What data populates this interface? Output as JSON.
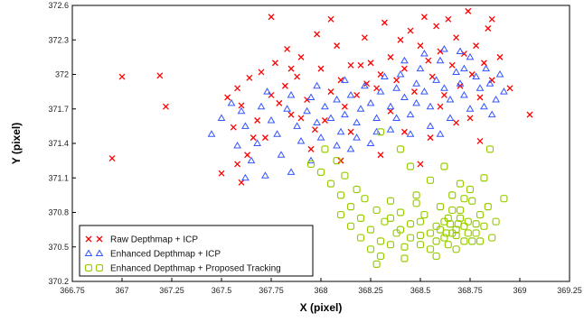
{
  "chart_data": {
    "type": "scatter",
    "title": "",
    "xlabel": "X (pixel)",
    "ylabel": "Y (pixel)",
    "xlim": [
      366.75,
      369.25
    ],
    "ylim": [
      370.2,
      372.6
    ],
    "xticks": [
      "366.75",
      "367",
      "367.25",
      "367.5",
      "367.75",
      "368",
      "368.25",
      "368.5",
      "368.75",
      "369",
      "369.25"
    ],
    "yticks": [
      "370.2",
      "370.5",
      "370.8",
      "371.1",
      "371.4",
      "371.7",
      "372",
      "372.3",
      "372.6"
    ],
    "grid": false,
    "legend_position": "bottom-left",
    "series": [
      {
        "name": "Raw Depthmap + ICP",
        "marker": "x",
        "color": "#ff0000",
        "points": [
          [
            367.0,
            371.98
          ],
          [
            367.19,
            371.99
          ],
          [
            367.22,
            371.72
          ],
          [
            366.95,
            371.27
          ],
          [
            367.5,
            371.14
          ],
          [
            367.6,
            371.06
          ],
          [
            367.58,
            371.22
          ],
          [
            367.63,
            371.3
          ],
          [
            367.56,
            371.54
          ],
          [
            367.53,
            371.8
          ],
          [
            367.58,
            371.88
          ],
          [
            367.64,
            371.97
          ],
          [
            367.6,
            371.73
          ],
          [
            367.68,
            371.6
          ],
          [
            367.72,
            371.45
          ],
          [
            367.75,
            371.82
          ],
          [
            367.7,
            372.02
          ],
          [
            367.77,
            372.1
          ],
          [
            367.82,
            371.9
          ],
          [
            367.79,
            371.75
          ],
          [
            367.85,
            371.65
          ],
          [
            367.88,
            371.98
          ],
          [
            367.9,
            372.15
          ],
          [
            367.83,
            372.22
          ],
          [
            367.93,
            371.78
          ],
          [
            367.97,
            371.52
          ],
          [
            367.95,
            371.35
          ],
          [
            368.02,
            371.6
          ],
          [
            368.05,
            371.85
          ],
          [
            368.0,
            372.05
          ],
          [
            368.08,
            372.25
          ],
          [
            368.1,
            371.95
          ],
          [
            368.12,
            371.72
          ],
          [
            368.15,
            371.5
          ],
          [
            368.18,
            371.82
          ],
          [
            368.2,
            372.08
          ],
          [
            368.22,
            372.32
          ],
          [
            368.25,
            372.1
          ],
          [
            368.28,
            371.88
          ],
          [
            368.3,
            372.0
          ],
          [
            368.32,
            372.45
          ],
          [
            368.35,
            372.15
          ],
          [
            368.38,
            371.95
          ],
          [
            368.4,
            372.3
          ],
          [
            368.42,
            372.05
          ],
          [
            368.45,
            372.38
          ],
          [
            368.47,
            371.85
          ],
          [
            368.5,
            372.25
          ],
          [
            368.52,
            372.5
          ],
          [
            368.54,
            372.12
          ],
          [
            368.56,
            371.98
          ],
          [
            368.58,
            372.42
          ],
          [
            368.6,
            372.2
          ],
          [
            368.62,
            371.82
          ],
          [
            368.64,
            372.48
          ],
          [
            368.66,
            372.08
          ],
          [
            368.68,
            372.32
          ],
          [
            368.7,
            371.9
          ],
          [
            368.72,
            372.18
          ],
          [
            368.74,
            372.55
          ],
          [
            368.76,
            372.0
          ],
          [
            368.78,
            372.25
          ],
          [
            368.8,
            371.8
          ],
          [
            368.82,
            372.1
          ],
          [
            368.84,
            372.4
          ],
          [
            368.86,
            371.95
          ],
          [
            368.9,
            372.15
          ],
          [
            368.95,
            371.88
          ],
          [
            369.05,
            371.65
          ],
          [
            368.86,
            372.48
          ],
          [
            368.8,
            371.42
          ],
          [
            368.75,
            371.62
          ],
          [
            368.55,
            371.45
          ],
          [
            368.42,
            371.5
          ],
          [
            368.5,
            371.22
          ],
          [
            368.35,
            371.68
          ],
          [
            368.3,
            371.3
          ],
          [
            368.23,
            371.92
          ],
          [
            367.98,
            372.35
          ],
          [
            367.85,
            372.05
          ],
          [
            367.75,
            372.5
          ],
          [
            367.9,
            371.62
          ],
          [
            368.05,
            372.48
          ],
          [
            368.15,
            372.08
          ],
          [
            368.6,
            371.72
          ],
          [
            368.68,
            371.58
          ],
          [
            368.1,
            371.25
          ],
          [
            367.66,
            371.45
          ]
        ]
      },
      {
        "name": "Enhanced Depthmap + ICP",
        "marker": "triangle",
        "color": "#3355ff",
        "points": [
          [
            367.45,
            371.48
          ],
          [
            367.5,
            371.62
          ],
          [
            367.55,
            371.75
          ],
          [
            367.6,
            371.68
          ],
          [
            367.62,
            371.55
          ],
          [
            367.58,
            371.38
          ],
          [
            367.65,
            371.25
          ],
          [
            367.68,
            371.4
          ],
          [
            367.7,
            371.72
          ],
          [
            367.73,
            371.85
          ],
          [
            367.75,
            371.6
          ],
          [
            367.78,
            371.48
          ],
          [
            367.8,
            371.3
          ],
          [
            367.83,
            371.7
          ],
          [
            367.85,
            371.82
          ],
          [
            367.88,
            371.55
          ],
          [
            367.9,
            371.42
          ],
          [
            367.93,
            371.68
          ],
          [
            367.95,
            371.8
          ],
          [
            367.98,
            371.58
          ],
          [
            368.0,
            371.45
          ],
          [
            368.02,
            371.72
          ],
          [
            368.05,
            371.62
          ],
          [
            368.08,
            371.78
          ],
          [
            368.1,
            371.5
          ],
          [
            368.12,
            371.65
          ],
          [
            368.15,
            371.82
          ],
          [
            368.18,
            371.58
          ],
          [
            368.2,
            371.7
          ],
          [
            368.22,
            371.9
          ],
          [
            368.25,
            371.75
          ],
          [
            368.28,
            371.62
          ],
          [
            368.3,
            371.85
          ],
          [
            368.32,
            371.98
          ],
          [
            368.35,
            371.72
          ],
          [
            368.38,
            371.88
          ],
          [
            368.4,
            372.0
          ],
          [
            368.42,
            371.8
          ],
          [
            368.45,
            371.65
          ],
          [
            368.48,
            371.92
          ],
          [
            368.5,
            372.05
          ],
          [
            368.52,
            371.85
          ],
          [
            368.55,
            371.72
          ],
          [
            368.58,
            371.95
          ],
          [
            368.6,
            372.12
          ],
          [
            368.62,
            371.88
          ],
          [
            368.65,
            371.78
          ],
          [
            368.68,
            372.02
          ],
          [
            368.7,
            371.92
          ],
          [
            368.72,
            371.82
          ],
          [
            368.75,
            372.15
          ],
          [
            368.78,
            371.98
          ],
          [
            368.8,
            371.88
          ],
          [
            368.83,
            372.05
          ],
          [
            368.85,
            371.92
          ],
          [
            368.88,
            371.78
          ],
          [
            368.9,
            372.0
          ],
          [
            368.92,
            371.85
          ],
          [
            368.7,
            372.2
          ],
          [
            368.65,
            371.62
          ],
          [
            368.55,
            371.55
          ],
          [
            368.45,
            371.48
          ],
          [
            368.35,
            371.52
          ],
          [
            368.25,
            371.4
          ],
          [
            368.15,
            371.35
          ],
          [
            367.95,
            371.25
          ],
          [
            367.85,
            371.15
          ],
          [
            367.72,
            371.12
          ],
          [
            367.62,
            371.1
          ],
          [
            368.6,
            371.48
          ],
          [
            368.75,
            371.7
          ],
          [
            368.82,
            371.72
          ],
          [
            368.48,
            371.75
          ],
          [
            368.38,
            371.62
          ],
          [
            368.28,
            371.5
          ],
          [
            368.18,
            371.45
          ],
          [
            368.08,
            371.38
          ],
          [
            367.98,
            371.9
          ],
          [
            368.12,
            371.95
          ],
          [
            368.42,
            372.12
          ],
          [
            368.52,
            372.18
          ],
          [
            368.62,
            372.22
          ],
          [
            368.72,
            372.05
          ],
          [
            368.86,
            371.65
          ]
        ]
      },
      {
        "name": "Enhanced Depthmap + Proposed Tracking",
        "marker": "square",
        "color": "#99cc00",
        "points": [
          [
            367.95,
            371.22
          ],
          [
            368.0,
            371.15
          ],
          [
            368.02,
            371.35
          ],
          [
            368.05,
            371.05
          ],
          [
            368.08,
            371.25
          ],
          [
            368.1,
            370.95
          ],
          [
            368.12,
            371.12
          ],
          [
            368.15,
            370.85
          ],
          [
            368.18,
            371.0
          ],
          [
            368.2,
            370.75
          ],
          [
            368.22,
            370.92
          ],
          [
            368.25,
            370.65
          ],
          [
            368.28,
            370.82
          ],
          [
            368.3,
            370.55
          ],
          [
            368.32,
            370.72
          ],
          [
            368.35,
            370.9
          ],
          [
            368.38,
            370.62
          ],
          [
            368.4,
            370.8
          ],
          [
            368.42,
            370.5
          ],
          [
            368.45,
            370.7
          ],
          [
            368.48,
            370.88
          ],
          [
            368.5,
            370.6
          ],
          [
            368.52,
            370.78
          ],
          [
            368.55,
            370.48
          ],
          [
            368.58,
            370.68
          ],
          [
            368.6,
            370.85
          ],
          [
            368.62,
            370.58
          ],
          [
            368.64,
            370.75
          ],
          [
            368.66,
            370.95
          ],
          [
            368.68,
            370.65
          ],
          [
            368.7,
            370.82
          ],
          [
            368.72,
            370.55
          ],
          [
            368.74,
            370.72
          ],
          [
            368.76,
            370.9
          ],
          [
            368.78,
            370.62
          ],
          [
            368.8,
            370.78
          ],
          [
            368.82,
            370.68
          ],
          [
            368.84,
            370.85
          ],
          [
            368.86,
            370.58
          ],
          [
            368.88,
            370.72
          ],
          [
            368.7,
            371.05
          ],
          [
            368.75,
            371.0
          ],
          [
            368.65,
            370.7
          ],
          [
            368.68,
            370.6
          ],
          [
            368.72,
            370.68
          ],
          [
            368.7,
            370.75
          ],
          [
            368.66,
            370.62
          ],
          [
            368.74,
            370.62
          ],
          [
            368.6,
            370.65
          ],
          [
            368.62,
            370.72
          ],
          [
            368.78,
            370.7
          ],
          [
            368.64,
            370.52
          ],
          [
            368.55,
            370.62
          ],
          [
            368.5,
            370.52
          ],
          [
            368.45,
            370.58
          ],
          [
            368.4,
            370.65
          ],
          [
            368.35,
            370.52
          ],
          [
            368.3,
            370.42
          ],
          [
            368.25,
            370.48
          ],
          [
            368.2,
            370.58
          ],
          [
            368.15,
            370.68
          ],
          [
            368.1,
            370.78
          ],
          [
            368.35,
            370.75
          ],
          [
            368.48,
            370.95
          ],
          [
            368.55,
            371.08
          ],
          [
            368.45,
            371.2
          ],
          [
            368.4,
            371.35
          ],
          [
            368.3,
            371.5
          ],
          [
            368.62,
            371.2
          ],
          [
            368.85,
            371.35
          ],
          [
            368.92,
            370.92
          ],
          [
            368.58,
            370.42
          ],
          [
            368.68,
            370.48
          ],
          [
            368.8,
            370.55
          ],
          [
            368.28,
            370.35
          ],
          [
            368.42,
            370.4
          ],
          [
            368.5,
            370.72
          ],
          [
            368.66,
            370.82
          ],
          [
            368.72,
            370.92
          ],
          [
            368.82,
            371.1
          ],
          [
            368.76,
            370.55
          ],
          [
            368.58,
            370.55
          ],
          [
            368.63,
            370.62
          ],
          [
            368.69,
            370.7
          ]
        ]
      }
    ]
  }
}
